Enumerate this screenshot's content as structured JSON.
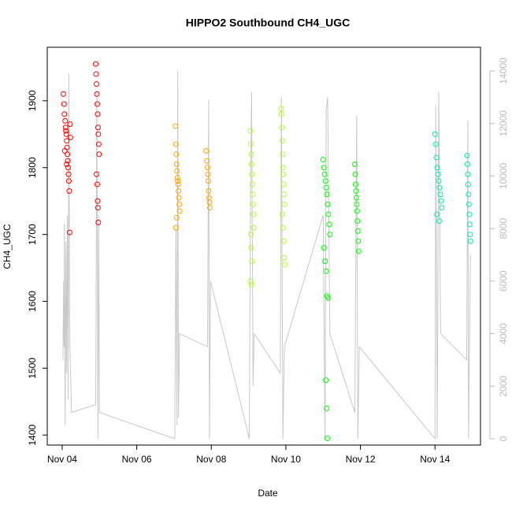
{
  "chart_data": {
    "type": "scatter",
    "title": "HIPPO2 Southbound CH4_UGC",
    "x_label": "Date",
    "y_label": "CH4_UGC",
    "xlim": [
      3.6,
      15.22
    ],
    "xticks": [
      {
        "value": 4,
        "label": "Nov 04"
      },
      {
        "value": 6,
        "label": "Nov 06"
      },
      {
        "value": 8,
        "label": "Nov 08"
      },
      {
        "value": 10,
        "label": "Nov 10"
      },
      {
        "value": 12,
        "label": "Nov 12"
      },
      {
        "value": 14,
        "label": "Nov 14"
      }
    ],
    "ylim": [
      1385,
      1980
    ],
    "yticks": [
      1400,
      1500,
      1600,
      1700,
      1800,
      1900
    ],
    "y2lim": [
      -240,
      14900
    ],
    "y2ticks": [
      0,
      2000,
      4000,
      6000,
      8000,
      10000,
      12000,
      14000
    ],
    "series": [
      {
        "color": "#ff0000",
        "x": [
          4.03,
          4.05,
          4.06,
          4.08,
          4.09,
          4.1,
          4.11,
          4.12,
          4.13,
          4.14,
          4.15,
          4.16,
          4.17,
          4.18,
          4.19,
          4.2,
          4.21,
          4.22,
          4.07,
          4.12,
          4.9,
          4.91,
          4.92,
          4.93,
          4.94,
          4.95,
          4.96,
          4.97,
          4.98,
          4.99,
          4.92,
          4.94,
          4.95,
          4.96,
          4.97
        ],
        "values": [
          1910,
          1895,
          1880,
          1870,
          1860,
          1855,
          1850,
          1840,
          1830,
          1820,
          1810,
          1800,
          1790,
          1780,
          1765,
          1703,
          1865,
          1845,
          1825,
          1805,
          1955,
          1940,
          1925,
          1910,
          1895,
          1880,
          1860,
          1850,
          1835,
          1820,
          1790,
          1775,
          1750,
          1740,
          1718
        ]
      },
      {
        "color": "#ffa500",
        "x": [
          7.04,
          7.05,
          7.06,
          7.07,
          7.08,
          7.09,
          7.1,
          7.11,
          7.12,
          7.13,
          7.14,
          7.15,
          7.07,
          7.05,
          7.86,
          7.88,
          7.9,
          7.91,
          7.92,
          7.93,
          7.94,
          7.95,
          7.96
        ],
        "values": [
          1862,
          1835,
          1820,
          1805,
          1795,
          1785,
          1780,
          1775,
          1765,
          1755,
          1745,
          1735,
          1725,
          1710,
          1825,
          1810,
          1800,
          1790,
          1780,
          1765,
          1755,
          1748,
          1740
        ]
      },
      {
        "color": "#adff2f",
        "x": [
          9.05,
          9.06,
          9.07,
          9.08,
          9.09,
          9.1,
          9.11,
          9.12,
          9.13,
          9.14,
          9.06,
          9.07,
          9.09,
          9.05,
          9.08,
          9.87,
          9.88,
          9.89,
          9.9,
          9.91,
          9.92,
          9.93,
          9.94,
          9.95,
          9.96,
          9.9,
          9.92,
          9.94,
          9.95,
          9.97
        ],
        "values": [
          1855,
          1835,
          1820,
          1805,
          1790,
          1775,
          1760,
          1745,
          1730,
          1710,
          1700,
          1680,
          1660,
          1630,
          1625,
          1888,
          1880,
          1860,
          1840,
          1820,
          1800,
          1790,
          1775,
          1760,
          1745,
          1730,
          1710,
          1690,
          1665,
          1655
        ]
      },
      {
        "color": "#00ff00",
        "x": [
          11.0,
          11.02,
          11.04,
          11.06,
          11.08,
          11.1,
          11.12,
          11.14,
          11.16,
          11.18,
          11.02,
          11.05,
          11.08,
          11.1,
          11.13,
          11.07,
          11.09,
          11.11,
          11.85,
          11.86,
          11.87,
          11.88,
          11.89,
          11.9,
          11.91,
          11.92,
          11.93,
          11.94,
          11.95
        ],
        "values": [
          1812,
          1800,
          1790,
          1780,
          1770,
          1760,
          1745,
          1730,
          1715,
          1700,
          1680,
          1660,
          1645,
          1608,
          1605,
          1482,
          1440,
          1395,
          1805,
          1790,
          1775,
          1765,
          1755,
          1745,
          1735,
          1720,
          1705,
          1690,
          1675
        ]
      },
      {
        "color": "#00eeaa",
        "x": [
          14.0,
          14.02,
          14.04,
          14.06,
          14.08,
          14.1,
          14.12,
          14.14,
          14.16,
          14.18,
          14.05,
          14.11,
          14.86,
          14.87,
          14.88,
          14.89,
          14.9,
          14.91,
          14.92,
          14.93,
          14.94,
          14.95
        ],
        "values": [
          1850,
          1835,
          1815,
          1800,
          1790,
          1780,
          1770,
          1760,
          1750,
          1740,
          1730,
          1720,
          1818,
          1805,
          1790,
          1775,
          1760,
          1745,
          1730,
          1715,
          1700,
          1690
        ]
      },
      {
        "type": "line",
        "axis": "y2",
        "color": "#c8c8c8",
        "x": [
          4.02,
          4.04,
          4.05,
          4.06,
          4.08,
          4.1,
          4.12,
          4.14,
          4.16,
          4.18,
          4.2,
          4.25,
          4.9,
          4.93,
          4.96,
          4.98,
          5.0,
          7.02,
          7.05,
          7.08,
          7.1,
          7.12,
          7.15,
          7.9,
          7.93,
          7.95,
          7.98,
          9.02,
          9.05,
          9.08,
          9.12,
          9.15,
          9.85,
          9.88,
          9.92,
          9.96,
          11.0,
          11.05,
          11.08,
          11.12,
          11.18,
          11.85,
          11.9,
          11.93,
          11.97,
          14.0,
          14.02,
          14.06,
          14.1,
          14.15,
          14.85,
          14.88,
          14.9,
          14.95
        ],
        "values": [
          3000,
          6000,
          3500,
          8200,
          500,
          7500,
          2500,
          8500,
          1500,
          13900,
          4000,
          1000,
          1300,
          13200,
          0,
          8500,
          1000,
          0,
          8000,
          500,
          14000,
          800,
          4000,
          3500,
          12900,
          0,
          6000,
          0,
          9000,
          13200,
          2000,
          4000,
          2500,
          13000,
          0,
          3500,
          8500,
          0,
          12500,
          13000,
          4000,
          1000,
          12300,
          0,
          3500,
          0,
          12700,
          0,
          13200,
          4000,
          3000,
          12100,
          0,
          7000
        ]
      }
    ]
  }
}
